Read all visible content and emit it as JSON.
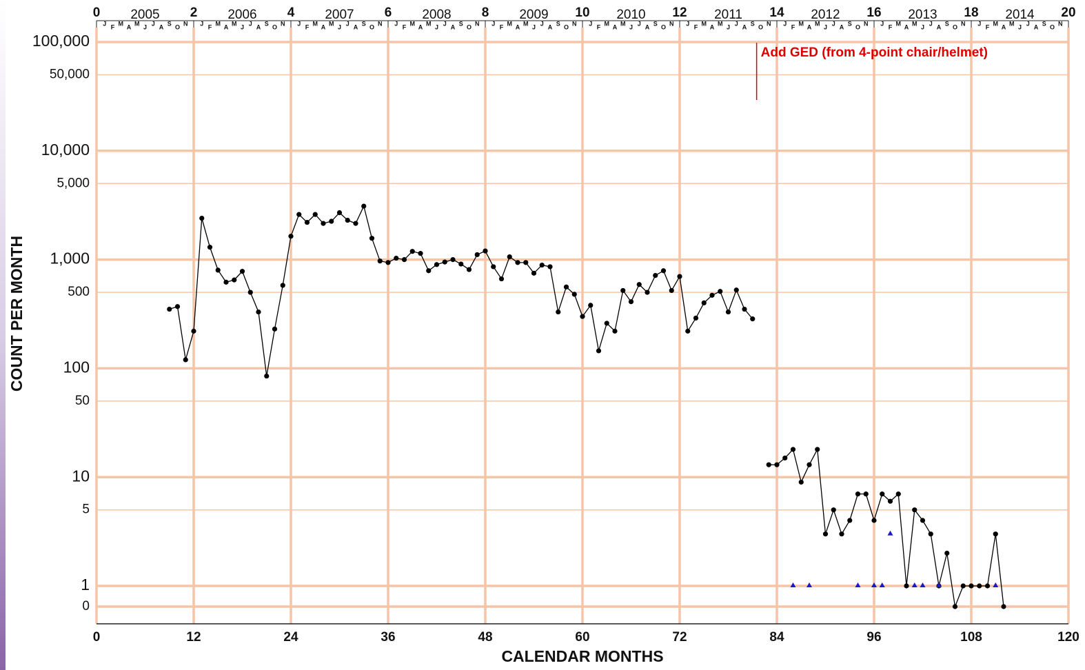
{
  "chart_data": {
    "type": "line",
    "log_y": true,
    "grid": true,
    "xlabel": "CALENDAR MONTHS",
    "ylabel": "COUNT PER MONTH",
    "xlim": [
      0,
      120
    ],
    "xticks": [
      0,
      12,
      24,
      36,
      48,
      60,
      72,
      84,
      96,
      108,
      120
    ],
    "x2lim": [
      0,
      20
    ],
    "x2ticks": [
      0,
      2,
      4,
      6,
      8,
      10,
      12,
      14,
      16,
      18,
      20
    ],
    "years": [
      "2005",
      "2006",
      "2007",
      "2008",
      "2009",
      "2010",
      "2011",
      "2012",
      "2013",
      "2014"
    ],
    "month_letters": [
      "J",
      "F",
      "M",
      "A",
      "M",
      "J",
      "J",
      "A",
      "S",
      "O",
      "N"
    ],
    "ylim": [
      1,
      100000
    ],
    "yticks": [
      {
        "value": 100000,
        "label": "100,000"
      },
      {
        "value": 50000,
        "label": "50,000"
      },
      {
        "value": 10000,
        "label": "10,000"
      },
      {
        "value": 5000,
        "label": "5,000"
      },
      {
        "value": 1000,
        "label": "1,000"
      },
      500,
      100,
      50,
      10,
      5,
      1,
      0
    ],
    "grid_color": "#f6c4a6",
    "series": [
      {
        "color": "#000000",
        "marker": "circle",
        "x": [
          9,
          10,
          11,
          12,
          13,
          14,
          15,
          16,
          17,
          18,
          19,
          20,
          21,
          22,
          23,
          24,
          25,
          26,
          27,
          28,
          29,
          30,
          31,
          32,
          33,
          34,
          35,
          36,
          37,
          38,
          39,
          40,
          41,
          42,
          43,
          44,
          45,
          46,
          47,
          48,
          49,
          50,
          51,
          52,
          53,
          54,
          55,
          56,
          57,
          58,
          59,
          60,
          61,
          62,
          63,
          64,
          65,
          66,
          67,
          68,
          69,
          70,
          71,
          72,
          73,
          74,
          75,
          76,
          77,
          78,
          79,
          80,
          81,
          82,
          83,
          84,
          85,
          86,
          87,
          88,
          89,
          90,
          91,
          92,
          93,
          94,
          95,
          96,
          97,
          98,
          99,
          100,
          101,
          102,
          103,
          104,
          105,
          106,
          107,
          108,
          109,
          110,
          111,
          112
        ],
        "values": [
          350,
          370,
          120,
          220,
          2400,
          1300,
          800,
          620,
          650,
          780,
          500,
          330,
          85,
          230,
          580,
          1640,
          2600,
          2200,
          2600,
          2150,
          2250,
          2700,
          2300,
          2150,
          3100,
          1570,
          970,
          940,
          1030,
          1000,
          1190,
          1140,
          790,
          900,
          950,
          1000,
          910,
          810,
          1110,
          1200,
          860,
          665,
          1060,
          940,
          940,
          750,
          890,
          860,
          330,
          560,
          480,
          300,
          380,
          145,
          260,
          220,
          520,
          410,
          590,
          500,
          715,
          790,
          520,
          700,
          220,
          290,
          400,
          470,
          510,
          330,
          525,
          350,
          285,
          null,
          13,
          13,
          15,
          18,
          9,
          13,
          18,
          3,
          5,
          3,
          4,
          7,
          7,
          4,
          7,
          6,
          7,
          1,
          5,
          4,
          3,
          1,
          2,
          0,
          1,
          1,
          1,
          1,
          3,
          0
        ]
      },
      {
        "color": "#1a1acc",
        "marker": "triangle",
        "line": false,
        "x": [
          86,
          88,
          94,
          96,
          97,
          98,
          101,
          102,
          104,
          111
        ],
        "values": [
          1,
          1,
          1,
          1,
          1,
          3,
          1,
          1,
          1,
          1
        ]
      }
    ],
    "annotations": [
      {
        "text": "Add GED (from 4-point chair/helmet)",
        "x": 81.5,
        "color": "#dd0000"
      }
    ]
  }
}
